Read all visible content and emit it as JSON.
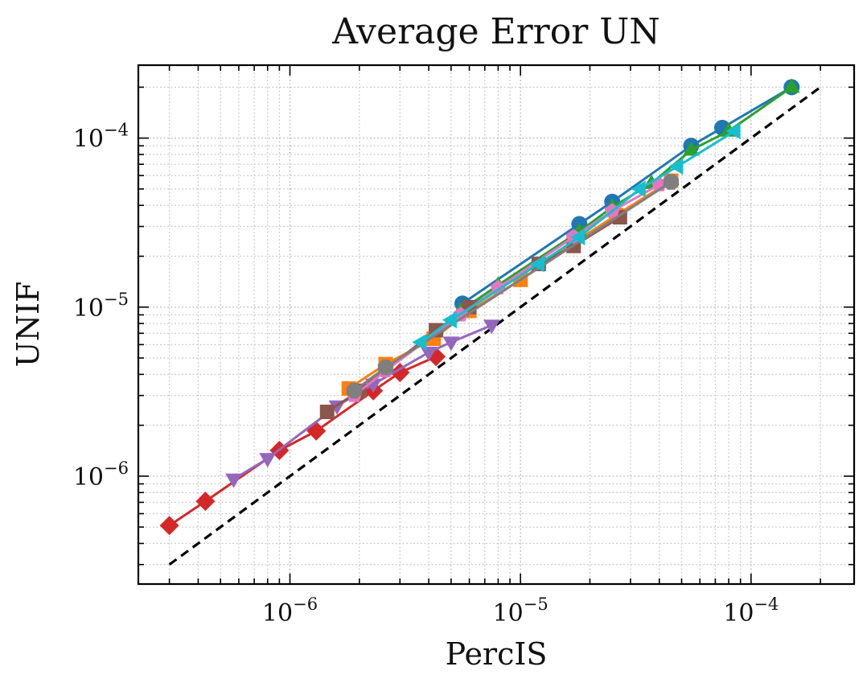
{
  "chart_data": {
    "type": "line",
    "title": "Average Error UN",
    "xlabel": "PercIS",
    "ylabel": "UNIF",
    "xscale": "log",
    "yscale": "log",
    "xlim": [
      2.2e-07,
      0.00028
    ],
    "ylim": [
      2.3e-07,
      0.00027
    ],
    "x_ticks": [
      {
        "value": 1e-06,
        "base": "10",
        "exp": "−6"
      },
      {
        "value": 1e-05,
        "base": "10",
        "exp": "−5"
      },
      {
        "value": 0.0001,
        "base": "10",
        "exp": "−4"
      }
    ],
    "y_ticks": [
      {
        "value": 1e-06,
        "base": "10",
        "exp": "−6"
      },
      {
        "value": 1e-05,
        "base": "10",
        "exp": "−5"
      },
      {
        "value": 0.0001,
        "base": "10",
        "exp": "−4"
      }
    ],
    "grid": true,
    "reference_line": {
      "x": [
        3e-07,
        0.0002
      ],
      "y": [
        3e-07,
        0.0002
      ],
      "color": "#000000",
      "style": "dashed"
    },
    "series": [
      {
        "color": "#1f77b4",
        "marker": "circle",
        "x": [
          5.6e-06,
          1.8e-05,
          2.5e-05,
          5.5e-05,
          7.5e-05,
          0.00015
        ],
        "y": [
          1.05e-05,
          3.1e-05,
          4.2e-05,
          9e-05,
          0.000115,
          0.0002
        ]
      },
      {
        "color": "#ff7f0e",
        "marker": "square",
        "x": [
          1.8e-06,
          2.6e-06,
          4.2e-06,
          6e-06,
          1e-05,
          1.7e-05,
          2.6e-05,
          4.5e-05
        ],
        "y": [
          3.3e-06,
          4.6e-06,
          6.5e-06,
          9.5e-06,
          1.45e-05,
          2.4e-05,
          3.5e-05,
          5.6e-05
        ]
      },
      {
        "color": "#2ca02c",
        "marker": "triangle-up",
        "x": [
          5.5e-06,
          8e-06,
          1.8e-05,
          2.5e-05,
          3.7e-05,
          5.5e-05,
          8e-05,
          0.00015
        ],
        "y": [
          9.5e-06,
          1.35e-05,
          2.8e-05,
          3.9e-05,
          5.4e-05,
          8.5e-05,
          0.00011,
          0.0002
        ]
      },
      {
        "color": "#d62728",
        "marker": "diamond",
        "x": [
          3e-07,
          4.3e-07,
          9e-07,
          1.3e-06,
          2.3e-06,
          3e-06,
          4.3e-06
        ],
        "y": [
          5.1e-07,
          7.1e-07,
          1.42e-06,
          1.85e-06,
          3.2e-06,
          4.1e-06,
          5.1e-06
        ]
      },
      {
        "color": "#9467bd",
        "marker": "triangle-down",
        "x": [
          5.7e-07,
          8e-07,
          1.6e-06,
          2.3e-06,
          4e-06,
          5e-06,
          7.5e-06
        ],
        "y": [
          9.6e-07,
          1.27e-06,
          2.6e-06,
          3.5e-06,
          5.4e-06,
          6.2e-06,
          7.8e-06
        ]
      },
      {
        "color": "#8c564b",
        "marker": "square",
        "x": [
          1.45e-06,
          2e-06,
          4.3e-06,
          6e-06,
          1.2e-05,
          1.7e-05,
          2.7e-05
        ],
        "y": [
          2.4e-06,
          3.2e-06,
          7.3e-06,
          1e-05,
          1.8e-05,
          2.3e-05,
          3.4e-05
        ]
      },
      {
        "color": "#e377c2",
        "marker": "pentagon",
        "x": [
          1.9e-06,
          2.6e-06,
          5.5e-06,
          8e-06,
          1.7e-05,
          2.5e-05,
          4e-05
        ],
        "y": [
          3e-06,
          4.2e-06,
          9e-06,
          1.3e-05,
          2.6e-05,
          3.7e-05,
          5.3e-05
        ]
      },
      {
        "color": "#7f7f7f",
        "marker": "octagon",
        "x": [
          1.9e-06,
          2.6e-06,
          4.5e-05
        ],
        "y": [
          3.2e-06,
          4.4e-06,
          5.5e-05
        ]
      },
      {
        "color": "#17becf",
        "marker": "triangle-left",
        "x": [
          3.7e-06,
          5e-06,
          1.2e-05,
          1.8e-05,
          3.3e-05,
          4.8e-05,
          8.5e-05
        ],
        "y": [
          6.2e-06,
          8.4e-06,
          1.8e-05,
          2.6e-05,
          5e-05,
          6.8e-05,
          0.00011
        ]
      }
    ]
  }
}
